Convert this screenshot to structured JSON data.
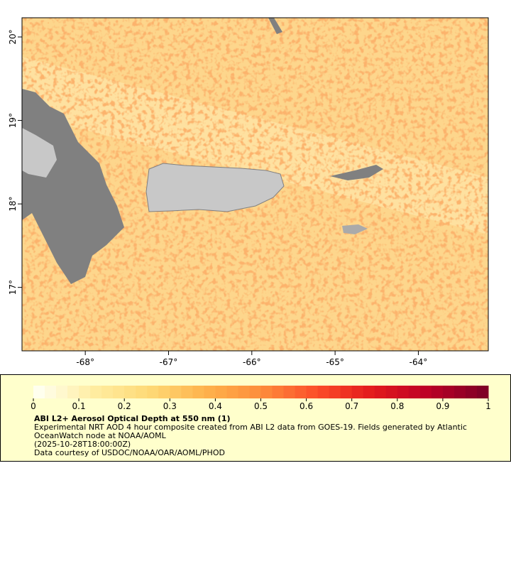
{
  "map": {
    "xlim": [
      -68.76,
      -63.16
    ],
    "ylim": [
      16.24,
      20.23
    ],
    "xticks": [
      {
        "value": -68,
        "label": "-68°"
      },
      {
        "value": -67,
        "label": "-67°"
      },
      {
        "value": -66,
        "label": "-66°"
      },
      {
        "value": -65,
        "label": "-65°"
      },
      {
        "value": -64,
        "label": "-64°"
      }
    ],
    "yticks": [
      {
        "value": 17,
        "label": "17°"
      },
      {
        "value": 18,
        "label": "18°"
      },
      {
        "value": 19,
        "label": "19°"
      },
      {
        "value": 20,
        "label": "20°"
      }
    ]
  },
  "colorbar": {
    "lim": [
      0,
      1
    ],
    "segments": 40,
    "colors": [
      "#ffffee",
      "#ffeda0",
      "#fed976",
      "#feb24c",
      "#fd8d3c",
      "#fc4e2a",
      "#e31a1c",
      "#bd0026",
      "#800026"
    ],
    "ticks": [
      0,
      0.1,
      0.2,
      0.3,
      0.4,
      0.5,
      0.6,
      0.7,
      0.8,
      0.9,
      1
    ]
  },
  "legend": {
    "title": "ABI L2+ Aerosol Optical Depth at 550 nm (1)",
    "lines": [
      "Experimental NRT AOD 4 hour composite created from ABI L2 data from GOES-19. Fields generated by Atlantic",
      "OceanWatch node at NOAA/AOML",
      "(2025-10-28T18:00:00Z)",
      "Data courtesy of USDOC/NOAA/OAR/AOML/PHOD"
    ]
  }
}
